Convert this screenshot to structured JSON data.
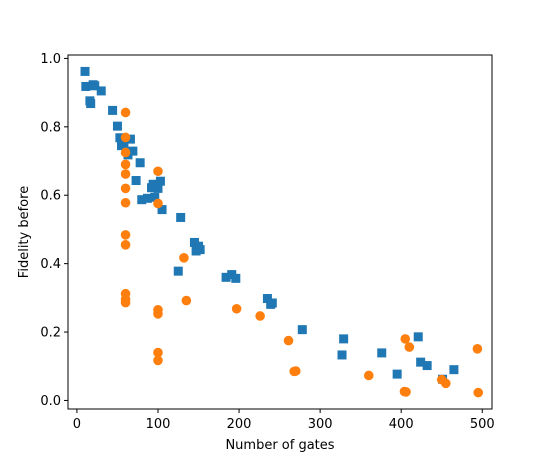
{
  "chart_data": {
    "type": "scatter",
    "xlabel": "Number of gates",
    "ylabel": "Fidelity before",
    "xlim": [
      -11,
      512
    ],
    "ylim": [
      -0.025,
      1.01
    ],
    "xticks": [
      0,
      100,
      200,
      300,
      400,
      500
    ],
    "yticks": [
      0.0,
      0.2,
      0.4,
      0.6,
      0.8,
      1.0
    ],
    "grid": false,
    "series": [
      {
        "marker": "square",
        "color": "#1f77b4",
        "points": [
          [
            10,
            0.962
          ],
          [
            11,
            0.918
          ],
          [
            16,
            0.876
          ],
          [
            17,
            0.868
          ],
          [
            20,
            0.923
          ],
          [
            22,
            0.92
          ],
          [
            30,
            0.905
          ],
          [
            44,
            0.848
          ],
          [
            50,
            0.802
          ],
          [
            53,
            0.768
          ],
          [
            55,
            0.745
          ],
          [
            58,
            0.748
          ],
          [
            63,
            0.718
          ],
          [
            66,
            0.764
          ],
          [
            69,
            0.729
          ],
          [
            73,
            0.643
          ],
          [
            78,
            0.695
          ],
          [
            80,
            0.587
          ],
          [
            87,
            0.591
          ],
          [
            92,
            0.622
          ],
          [
            94,
            0.632
          ],
          [
            96,
            0.594
          ],
          [
            100,
            0.62
          ],
          [
            103,
            0.641
          ],
          [
            105,
            0.558
          ],
          [
            125,
            0.378
          ],
          [
            128,
            0.535
          ],
          [
            145,
            0.462
          ],
          [
            147,
            0.437
          ],
          [
            150,
            0.451
          ],
          [
            152,
            0.441
          ],
          [
            184,
            0.36
          ],
          [
            191,
            0.368
          ],
          [
            196,
            0.357
          ],
          [
            235,
            0.298
          ],
          [
            239,
            0.281
          ],
          [
            241,
            0.285
          ],
          [
            278,
            0.207
          ],
          [
            327,
            0.133
          ],
          [
            329,
            0.18
          ],
          [
            376,
            0.139
          ],
          [
            395,
            0.077
          ],
          [
            421,
            0.186
          ],
          [
            424,
            0.112
          ],
          [
            432,
            0.102
          ],
          [
            451,
            0.062
          ],
          [
            465,
            0.09
          ]
        ]
      },
      {
        "marker": "circle",
        "color": "#ff7f0e",
        "points": [
          [
            60,
            0.842
          ],
          [
            60,
            0.769
          ],
          [
            60,
            0.725
          ],
          [
            60,
            0.69
          ],
          [
            60,
            0.662
          ],
          [
            60,
            0.62
          ],
          [
            60,
            0.578
          ],
          [
            60,
            0.484
          ],
          [
            60,
            0.455
          ],
          [
            60,
            0.312
          ],
          [
            60,
            0.296
          ],
          [
            60,
            0.286
          ],
          [
            100,
            0.67
          ],
          [
            100,
            0.576
          ],
          [
            100,
            0.265
          ],
          [
            100,
            0.253
          ],
          [
            100,
            0.14
          ],
          [
            100,
            0.117
          ],
          [
            132,
            0.417
          ],
          [
            135,
            0.292
          ],
          [
            197,
            0.268
          ],
          [
            226,
            0.247
          ],
          [
            261,
            0.175
          ],
          [
            268,
            0.085
          ],
          [
            270,
            0.086
          ],
          [
            360,
            0.073
          ],
          [
            404,
            0.026
          ],
          [
            405,
            0.18
          ],
          [
            406,
            0.025
          ],
          [
            410,
            0.156
          ],
          [
            450,
            0.061
          ],
          [
            455,
            0.05
          ],
          [
            494,
            0.151
          ],
          [
            495,
            0.023
          ]
        ]
      }
    ]
  }
}
